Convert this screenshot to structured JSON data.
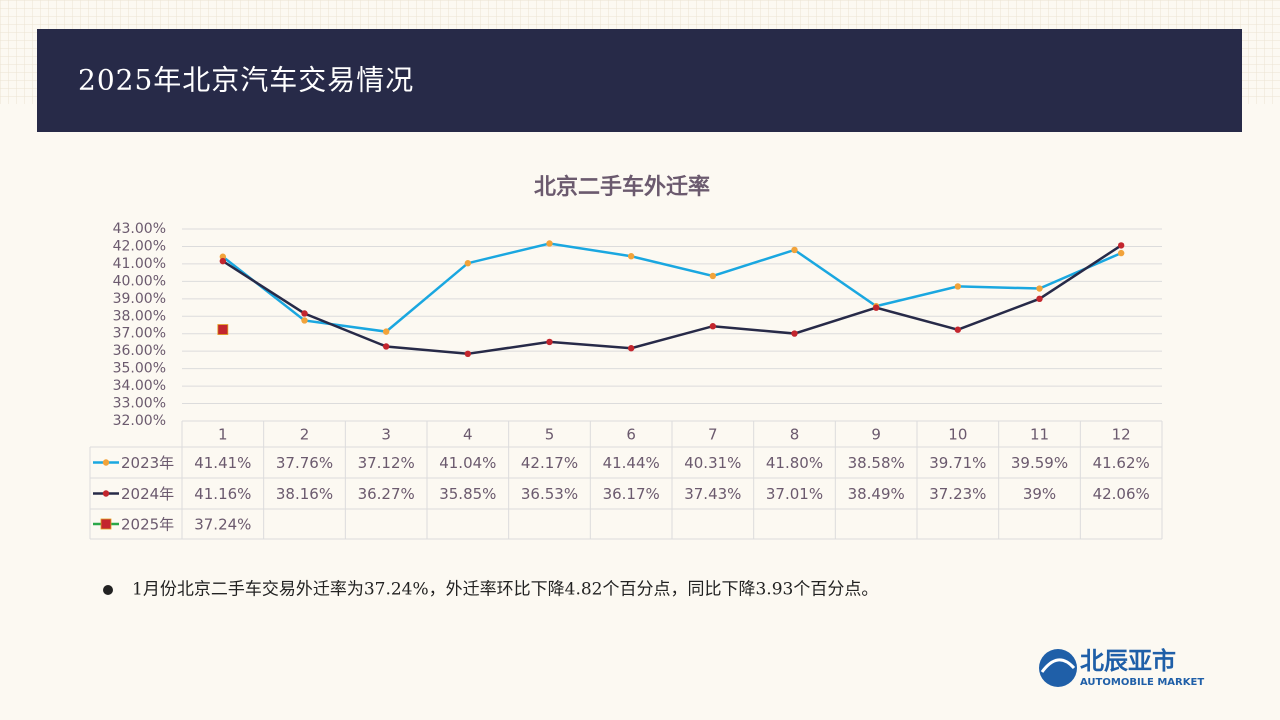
{
  "header": {
    "title": "2025年北京汽车交易情况"
  },
  "chart_data": {
    "type": "line",
    "title": "北京二手车外迁率",
    "categories": [
      "1",
      "2",
      "3",
      "4",
      "5",
      "6",
      "7",
      "8",
      "9",
      "10",
      "11",
      "12"
    ],
    "series": [
      {
        "name": "2023年",
        "color": "#1aa7e0",
        "marker_color": "#f2a33a",
        "marker": "circle",
        "values": [
          41.41,
          37.76,
          37.12,
          41.04,
          42.17,
          41.44,
          40.31,
          41.8,
          38.58,
          39.71,
          39.59,
          41.62
        ],
        "value_labels": [
          "41.41%",
          "37.76%",
          "37.12%",
          "41.04%",
          "42.17%",
          "41.44%",
          "40.31%",
          "41.80%",
          "38.58%",
          "39.71%",
          "39.59%",
          "41.62%"
        ]
      },
      {
        "name": "2024年",
        "color": "#272a48",
        "marker_color": "#c3262e",
        "marker": "circle",
        "values": [
          41.16,
          38.16,
          36.27,
          35.85,
          36.53,
          36.17,
          37.43,
          37.01,
          38.49,
          37.23,
          39,
          42.06
        ],
        "value_labels": [
          "41.16%",
          "38.16%",
          "36.27%",
          "35.85%",
          "36.53%",
          "36.17%",
          "37.43%",
          "37.01%",
          "38.49%",
          "37.23%",
          "39%",
          "42.06%"
        ]
      },
      {
        "name": "2025年",
        "color": "#2aa84a",
        "marker_color": "#c3262e",
        "marker": "square",
        "values": [
          37.24,
          null,
          null,
          null,
          null,
          null,
          null,
          null,
          null,
          null,
          null,
          null
        ],
        "value_labels": [
          "37.24%",
          null,
          null,
          null,
          null,
          null,
          null,
          null,
          null,
          null,
          null,
          null
        ]
      }
    ],
    "ylim": [
      32,
      43
    ],
    "yticks": [
      {
        "value": 32,
        "label": "32.00%"
      },
      {
        "value": 33,
        "label": "33.00%"
      },
      {
        "value": 34,
        "label": "34.00%"
      },
      {
        "value": 35,
        "label": "35.00%"
      },
      {
        "value": 36,
        "label": "36.00%"
      },
      {
        "value": 37,
        "label": "37.00%"
      },
      {
        "value": 38,
        "label": "38.00%"
      },
      {
        "value": 39,
        "label": "39.00%"
      },
      {
        "value": 40,
        "label": "40.00%"
      },
      {
        "value": 41,
        "label": "41.00%"
      },
      {
        "value": 42,
        "label": "42.00%"
      },
      {
        "value": 43,
        "label": "43.00%"
      }
    ],
    "grid": true
  },
  "note": "1月份北京二手车交易外迁率为37.24%，外迁率环比下降4.82个百分点，同比下降3.93个百分点。",
  "logo": {
    "name": "北辰亚市",
    "subtitle": "AUTOMOBILE MARKET"
  }
}
